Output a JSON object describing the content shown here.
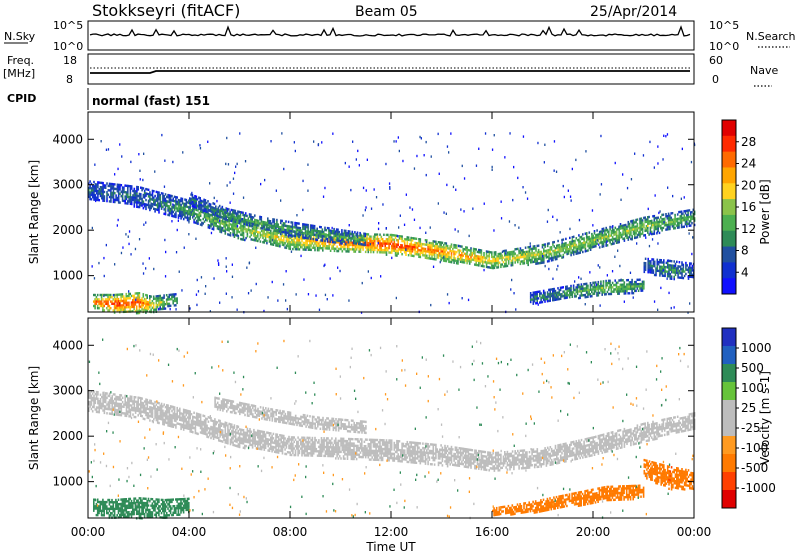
{
  "header": {
    "station": "Stokkseyri (fitACF)",
    "beam": "Beam 05",
    "date": "25/Apr/2014"
  },
  "strips": {
    "nsky_label": "N.Sky",
    "nsky_ticks": [
      "10^5",
      "10^0"
    ],
    "nsearch_label": "N.Search",
    "nsearch_ticks": [
      "10^5",
      "10^0"
    ],
    "freq_label_1": "Freq.",
    "freq_label_2": "[MHz]",
    "freq_ticks": [
      "18",
      "8"
    ],
    "nave_label": "Nave",
    "nave_ticks": [
      "60",
      "0"
    ],
    "cpid_label": "CPID",
    "cpid_value": "normal (fast) 151"
  },
  "colors": {
    "power": [
      "#1010ff",
      "#1030d0",
      "#2050a0",
      "#2e8b57",
      "#4caf50",
      "#8bc34a",
      "#ffd21f",
      "#ffa500",
      "#ff6a00",
      "#ff2a00",
      "#e00000"
    ],
    "velocity": [
      "#2030c0",
      "#2060c0",
      "#2e8b57",
      "#66c33a",
      "#bdbdbd",
      "#bdbdbd",
      "#ff9a20",
      "#ff7a00",
      "#ff4000",
      "#e00000"
    ]
  },
  "chart_data": [
    {
      "type": "heatmap",
      "name": "power",
      "ylabel": "Slant Range [km]",
      "yticks": [
        "4000",
        "3000",
        "2000",
        "1000"
      ],
      "ylim": [
        200,
        4600
      ],
      "xlim": [
        0,
        24
      ],
      "colorbar_label": "Power [dB]",
      "colorbar_ticks": [
        "28",
        "24",
        "20",
        "16",
        "12",
        "8",
        "4"
      ],
      "colorbar_range": [
        0,
        32
      ],
      "bands": [
        {
          "x": [
            0.0,
            2.0,
            4.0,
            6.0,
            8.0,
            10.0,
            12.0,
            14.0,
            16.0,
            18.0,
            20.0,
            22.0,
            24.0
          ],
          "y": [
            2900,
            2750,
            2450,
            2050,
            1800,
            1750,
            1700,
            1550,
            1350,
            1500,
            1800,
            2100,
            2300
          ],
          "width": [
            200,
            220,
            220,
            220,
            200,
            200,
            220,
            200,
            180,
            200,
            200,
            200,
            180
          ],
          "level": [
            8,
            8,
            12,
            16,
            20,
            24,
            28,
            24,
            20,
            16,
            16,
            16,
            12
          ]
        },
        {
          "x": [
            4.0,
            5.5,
            7.0,
            9.0,
            11.0
          ],
          "y": [
            2700,
            2350,
            2150,
            1950,
            1800
          ],
          "width": [
            120,
            140,
            140,
            160,
            140
          ],
          "level": [
            8,
            12,
            12,
            12,
            12
          ]
        },
        {
          "x": [
            0.2,
            1.0,
            2.0,
            2.5,
            3.5
          ],
          "y": [
            450,
            400,
            420,
            380,
            500
          ],
          "width": [
            150,
            200,
            220,
            180,
            120
          ],
          "level": [
            24,
            28,
            28,
            20,
            12
          ]
        },
        {
          "x": [
            17.5,
            19.0,
            20.5,
            22.0
          ],
          "y": [
            520,
            650,
            750,
            800
          ],
          "width": [
            120,
            140,
            160,
            140
          ],
          "level": [
            8,
            12,
            16,
            12
          ]
        },
        {
          "x": [
            22.0,
            23.0,
            24.0
          ],
          "y": [
            1250,
            1150,
            1100
          ],
          "width": [
            150,
            200,
            180
          ],
          "level": [
            8,
            12,
            8
          ]
        }
      ]
    },
    {
      "type": "heatmap",
      "name": "velocity",
      "ylabel": "Slant Range [km]",
      "yticks": [
        "4000",
        "3000",
        "2000",
        "1000"
      ],
      "ylim": [
        200,
        4600
      ],
      "xlim": [
        0,
        24
      ],
      "xlabel": "Time UT",
      "xticks": [
        "00:00",
        "04:00",
        "08:00",
        "12:00",
        "16:00",
        "20:00",
        "00:00"
      ],
      "colorbar_label": "Velocity [m s-1]",
      "colorbar_ticks": [
        "1000",
        "500",
        "100",
        "25",
        "-25",
        "-100",
        "-500",
        "-1000"
      ],
      "bands": [
        {
          "x": [
            0.0,
            2.0,
            4.0,
            6.0,
            8.0,
            10.0,
            12.0,
            14.0,
            16.0,
            18.0,
            20.0,
            22.0,
            24.0
          ],
          "y": [
            2800,
            2650,
            2350,
            2000,
            1800,
            1750,
            1700,
            1600,
            1450,
            1550,
            1800,
            2100,
            2350
          ],
          "width": [
            220,
            220,
            220,
            220,
            200,
            220,
            230,
            220,
            200,
            200,
            200,
            200,
            180
          ],
          "velocity": [
            0,
            0,
            0,
            0,
            0,
            0,
            0,
            0,
            0,
            0,
            0,
            0,
            0
          ]
        },
        {
          "x": [
            5.0,
            7.0,
            9.0,
            11.0
          ],
          "y": [
            2750,
            2500,
            2300,
            2200
          ],
          "width": [
            120,
            140,
            140,
            140
          ],
          "velocity": [
            0,
            0,
            0,
            0
          ]
        },
        {
          "x": [
            0.2,
            1.0,
            2.0,
            3.0,
            4.0
          ],
          "y": [
            450,
            420,
            440,
            420,
            500
          ],
          "width": [
            180,
            200,
            220,
            200,
            150
          ],
          "velocity": [
            200,
            200,
            150,
            150,
            100
          ]
        },
        {
          "x": [
            16.0,
            17.5,
            19.0,
            20.5,
            22.0
          ],
          "y": [
            350,
            450,
            600,
            750,
            800
          ],
          "width": [
            80,
            120,
            140,
            160,
            140
          ],
          "velocity": [
            -300,
            -300,
            -400,
            -400,
            -300
          ]
        },
        {
          "x": [
            22.0,
            23.0,
            24.0
          ],
          "y": [
            1300,
            1100,
            1050
          ],
          "width": [
            200,
            250,
            200
          ],
          "velocity": [
            -300,
            -500,
            -300
          ]
        }
      ]
    }
  ]
}
